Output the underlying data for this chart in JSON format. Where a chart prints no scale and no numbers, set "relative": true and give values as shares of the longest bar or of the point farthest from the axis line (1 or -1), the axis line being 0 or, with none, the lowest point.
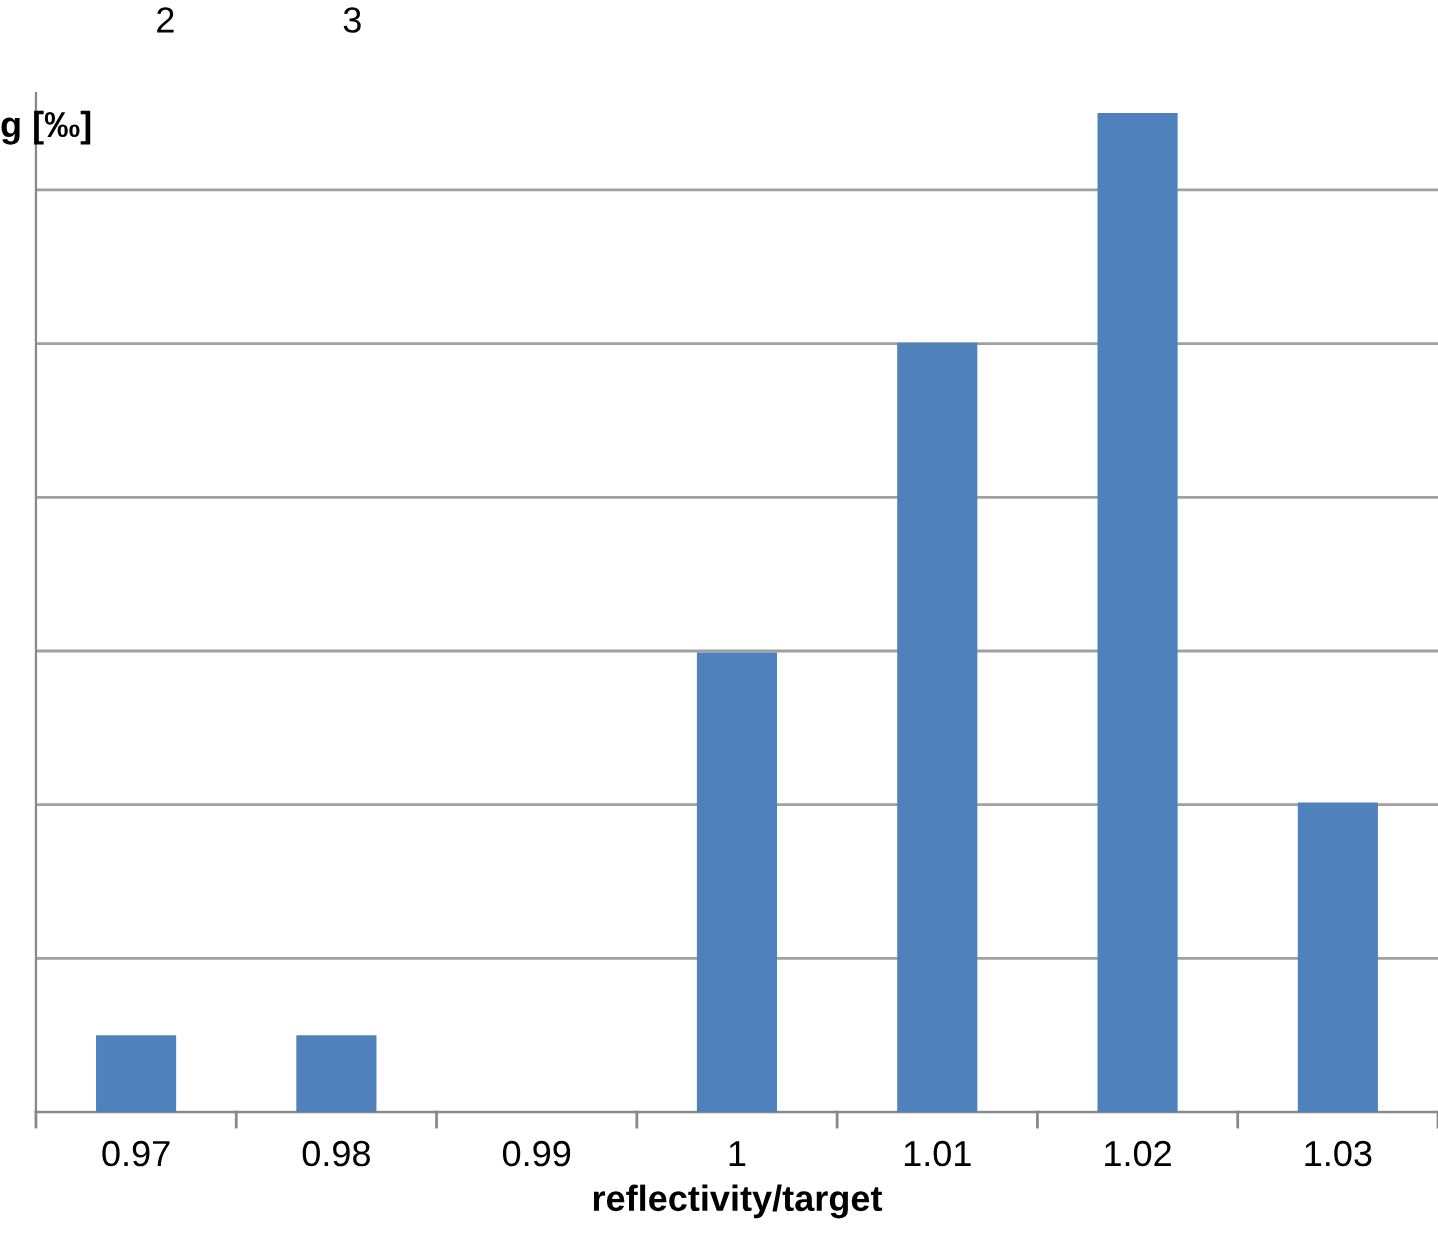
{
  "chart_data": {
    "type": "bar",
    "categories": [
      "0.97",
      "0.98",
      "0.99",
      "1",
      "1.01",
      "1.02",
      "1.03"
    ],
    "values": [
      0.077,
      0.077,
      0,
      0.46,
      0.77,
      1,
      0.31
    ],
    "color": "#4f81bd",
    "relative": true,
    "xlabel": "reflectivity/target",
    "ylabel": "g [‰]",
    "annotations": [
      "2",
      "3"
    ],
    "grid": "y",
    "legend": false
  }
}
